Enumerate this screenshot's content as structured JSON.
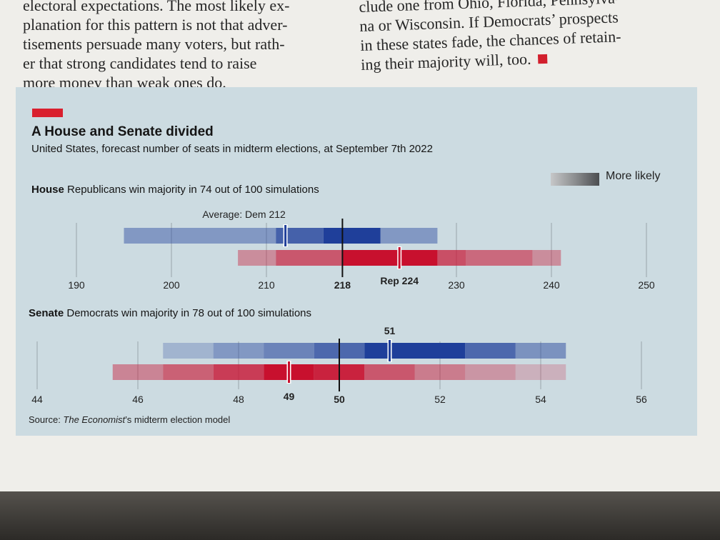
{
  "article": {
    "left_lines": [
      "electoral expectations. The most likely ex-",
      "planation for this pattern is not that adver-",
      "tisements persuade many voters, but rath-",
      "er that strong candidates tend to raise",
      "more money than weak ones do."
    ],
    "right_lines": [
      "clude one from Ohio, Florida, Pennsylva-",
      "na or Wisconsin. If Democrats’ prospects",
      "in these states fade, the chances of retain-",
      "ing their majority will, too."
    ]
  },
  "chart": {
    "title": "A House and Senate divided",
    "subtitle": "United States, forecast number of seats in midterm elections, at September 7th 2022",
    "legend_label": "More likely",
    "source_prefix": "Source: ",
    "source_italic": "The Economist",
    "source_suffix": "’s midterm election model",
    "colors": {
      "dem": "#1f3f9a",
      "rep": "#c8102e",
      "accent": "#d9202e",
      "panel": "#ccdbe1"
    }
  },
  "chart_data": [
    {
      "type": "bar",
      "heading": "House",
      "description": "Republicans win majority in 74 out of 100 simulations",
      "x_ticks": [
        190,
        200,
        210,
        218,
        230,
        240,
        250
      ],
      "majority_line": 218,
      "series": [
        {
          "name": "Dem",
          "average": 212,
          "average_label": "Average: Dem 212",
          "bands": [
            {
              "from": 195,
              "to": 211,
              "likelihood": 0.35
            },
            {
              "from": 211,
              "to": 216,
              "likelihood": 0.75
            },
            {
              "from": 216,
              "to": 222,
              "likelihood": 1.0
            },
            {
              "from": 222,
              "to": 228,
              "likelihood": 0.35
            }
          ]
        },
        {
          "name": "Rep",
          "average": 224,
          "average_label": "Rep 224",
          "bands": [
            {
              "from": 207,
              "to": 211,
              "likelihood": 0.3
            },
            {
              "from": 211,
              "to": 218,
              "likelihood": 0.6
            },
            {
              "from": 218,
              "to": 228,
              "likelihood": 1.0
            },
            {
              "from": 228,
              "to": 231,
              "likelihood": 0.65
            },
            {
              "from": 231,
              "to": 238,
              "likelihood": 0.5
            },
            {
              "from": 238,
              "to": 241,
              "likelihood": 0.3
            }
          ]
        }
      ]
    },
    {
      "type": "bar",
      "heading": "Senate",
      "description": "Democrats win majority in 78 out of 100 simulations",
      "x_ticks": [
        44,
        46,
        48,
        49,
        50,
        52,
        54,
        56
      ],
      "majority_line": 50,
      "series": [
        {
          "name": "Dem",
          "average": 51,
          "average_label": "51",
          "bands": [
            {
              "from": 46.5,
              "to": 47.5,
              "likelihood": 0.15
            },
            {
              "from": 47.5,
              "to": 48.5,
              "likelihood": 0.35
            },
            {
              "from": 48.5,
              "to": 49.5,
              "likelihood": 0.5
            },
            {
              "from": 49.5,
              "to": 50.5,
              "likelihood": 0.7
            },
            {
              "from": 50.5,
              "to": 52.5,
              "likelihood": 1.0
            },
            {
              "from": 52.5,
              "to": 53.5,
              "likelihood": 0.7
            },
            {
              "from": 53.5,
              "to": 54.5,
              "likelihood": 0.4
            }
          ]
        },
        {
          "name": "Rep",
          "average": 49,
          "average_label": "49",
          "bands": [
            {
              "from": 45.5,
              "to": 46.5,
              "likelihood": 0.35
            },
            {
              "from": 46.5,
              "to": 47.5,
              "likelihood": 0.55
            },
            {
              "from": 47.5,
              "to": 48.5,
              "likelihood": 0.75
            },
            {
              "from": 48.5,
              "to": 49.5,
              "likelihood": 1.0
            },
            {
              "from": 49.5,
              "to": 50.5,
              "likelihood": 0.9
            },
            {
              "from": 50.5,
              "to": 51.5,
              "likelihood": 0.6
            },
            {
              "from": 51.5,
              "to": 52.5,
              "likelihood": 0.4
            },
            {
              "from": 52.5,
              "to": 53.5,
              "likelihood": 0.25
            },
            {
              "from": 53.5,
              "to": 54.5,
              "likelihood": 0.1
            }
          ]
        }
      ]
    }
  ]
}
